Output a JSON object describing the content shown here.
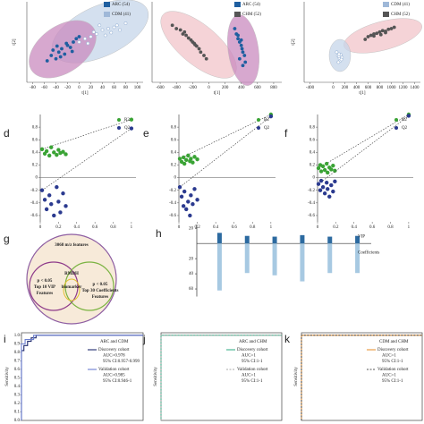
{
  "chart_data": [
    {
      "type": "scatter",
      "xlabel": "t[1]",
      "ylabel": "t[2]",
      "xlim": [
        -90,
        110
      ],
      "ylim": [
        -60,
        60
      ],
      "xticks": [
        -80,
        -60,
        -40,
        -20,
        0,
        20,
        40,
        60,
        80,
        100
      ],
      "series": [
        {
          "name": "ARC (54)",
          "color": "#1f5fa0",
          "x": [
            -55,
            -48,
            -40,
            -35,
            -30,
            -25,
            -20,
            -15,
            -10,
            -5,
            0,
            -45,
            -32,
            -22,
            -12,
            -38
          ],
          "values": [
            -28,
            -20,
            -25,
            -15,
            -10,
            -18,
            -5,
            -8,
            0,
            5,
            8,
            -12,
            -22,
            -2,
            -14,
            -6
          ]
        },
        {
          "name": "CDM (41)",
          "color": "#9fb8d8",
          "x": [
            0,
            10,
            20,
            25,
            30,
            40,
            45,
            50,
            60,
            65,
            70,
            80,
            35,
            55,
            15
          ],
          "values": [
            0,
            5,
            8,
            15,
            12,
            18,
            10,
            20,
            22,
            25,
            18,
            28,
            25,
            14,
            -2
          ]
        }
      ]
    },
    {
      "type": "scatter",
      "xlabel": "t[1]",
      "xlim": [
        -700,
        900
      ],
      "ylim": [
        -600,
        600
      ],
      "xticks": [
        -600,
        -400,
        -200,
        0,
        200,
        400,
        600,
        800
      ],
      "series": [
        {
          "name": "ARC (54)",
          "color": "#1f5fa0",
          "x": [
            320,
            340,
            360,
            380,
            400,
            410,
            420,
            440,
            450,
            380,
            360,
            420,
            400
          ],
          "values": [
            200,
            120,
            50,
            0,
            -50,
            -100,
            -150,
            -200,
            -300,
            -250,
            100,
            -350,
            30
          ]
        },
        {
          "name": "CHM (52)",
          "color": "#555555",
          "x": [
            -450,
            -400,
            -350,
            -320,
            -280,
            -250,
            -220,
            -200,
            -170,
            -150,
            -120,
            -100,
            -60,
            -30,
            -300,
            -180
          ],
          "values": [
            250,
            200,
            180,
            120,
            100,
            60,
            30,
            0,
            -40,
            -60,
            -100,
            -150,
            -200,
            -250,
            150,
            -20
          ]
        }
      ]
    },
    {
      "type": "scatter",
      "xlabel": "t[1]",
      "ylabel": "t[2]",
      "xlim": [
        -500,
        1500
      ],
      "ylim": [
        -600,
        600
      ],
      "xticks": [
        -400,
        0,
        200,
        400,
        600,
        800,
        1000,
        1200,
        1400
      ],
      "series": [
        {
          "name": "CDM (41)",
          "color": "#9fb8d8",
          "x": [
            60,
            80,
            100,
            110,
            120,
            130,
            150,
            90,
            140,
            100
          ],
          "values": [
            -150,
            -200,
            -220,
            -250,
            -280,
            -190,
            -230,
            -300,
            -260,
            -180
          ]
        },
        {
          "name": "CHM (52)",
          "color": "#555555",
          "x": [
            550,
            600,
            650,
            700,
            750,
            800,
            850,
            900,
            950,
            1000,
            1050,
            700,
            820,
            900
          ],
          "values": [
            40,
            80,
            100,
            120,
            130,
            150,
            170,
            160,
            190,
            200,
            220,
            90,
            110,
            140
          ]
        }
      ]
    },
    {
      "type": "scatter",
      "label": "d",
      "xlim": [
        0,
        1.05
      ],
      "ylim": [
        -0.7,
        1.0
      ],
      "xticks": [
        0,
        0.2,
        0.4,
        0.6,
        0.8,
        1
      ],
      "yticks": [
        0.8,
        0.6,
        0.4,
        0.2,
        0,
        -0.2,
        -0.4,
        -0.6
      ],
      "x": [
        0.02,
        0.05,
        0.07,
        0.1,
        0.12,
        0.15,
        0.18,
        0.2,
        0.22,
        0.25,
        0.28,
        1
      ],
      "series": [
        {
          "name": "R2",
          "color": "#3aa335",
          "values": [
            0.45,
            0.38,
            0.42,
            0.35,
            0.48,
            0.4,
            0.36,
            0.44,
            0.39,
            0.41,
            0.37,
            0.92
          ]
        },
        {
          "name": "Q2",
          "color": "#2b3a8f",
          "values": [
            -0.2,
            -0.35,
            -0.5,
            -0.28,
            -0.42,
            -0.6,
            -0.15,
            -0.38,
            -0.55,
            -0.25,
            -0.45,
            0.78
          ]
        }
      ]
    },
    {
      "type": "scatter",
      "label": "e",
      "xlim": [
        0,
        1.05
      ],
      "ylim": [
        -0.7,
        1.0
      ],
      "xticks": [
        0,
        0.2,
        0.4,
        0.6,
        0.8,
        1
      ],
      "yticks": [
        0.8,
        0.6,
        0.4,
        0.2,
        0,
        -0.2,
        -0.4,
        -0.6
      ],
      "x": [
        0.01,
        0.03,
        0.05,
        0.06,
        0.08,
        0.1,
        0.12,
        0.13,
        0.15,
        0.17,
        0.2,
        1
      ],
      "series": [
        {
          "name": "R2",
          "color": "#3aa335",
          "values": [
            0.3,
            0.25,
            0.32,
            0.22,
            0.28,
            0.35,
            0.26,
            0.3,
            0.24,
            0.33,
            0.29,
            1.0
          ]
        },
        {
          "name": "Q2",
          "color": "#2b3a8f",
          "values": [
            -0.15,
            -0.3,
            -0.45,
            -0.22,
            -0.5,
            -0.38,
            -0.6,
            -0.28,
            -0.42,
            -0.18,
            -0.35,
            0.97
          ]
        }
      ]
    },
    {
      "type": "scatter",
      "label": "f",
      "xlim": [
        0,
        1.05
      ],
      "ylim": [
        -0.7,
        1.0
      ],
      "xticks": [
        0,
        0.2,
        0.4,
        0.6,
        0.8,
        1
      ],
      "yticks": [
        0.8,
        0.6,
        0.4,
        0.2,
        0,
        -0.2,
        -0.4,
        -0.6
      ],
      "x": [
        0.01,
        0.03,
        0.04,
        0.06,
        0.08,
        0.1,
        0.11,
        0.13,
        0.15,
        0.17,
        0.19,
        1
      ],
      "series": [
        {
          "name": "R2",
          "color": "#3aa335",
          "values": [
            0.15,
            0.2,
            0.1,
            0.18,
            0.12,
            0.22,
            0.08,
            0.16,
            0.13,
            0.19,
            0.11,
            1.0
          ]
        },
        {
          "name": "Q2",
          "color": "#2b3a8f",
          "values": [
            -0.1,
            -0.2,
            -0.05,
            -0.15,
            -0.25,
            -0.08,
            -0.18,
            -0.3,
            -0.12,
            -0.22,
            -0.06,
            0.98
          ]
        }
      ]
    },
    {
      "type": "venn",
      "label": "g",
      "title": "3068 m/z features",
      "sets": [
        {
          "lines": [
            "p < 0.05",
            "Top 10 VIP",
            "Features"
          ]
        },
        {
          "lines": [
            "p < 0.05",
            "Top 30 Coefficients",
            "Features"
          ]
        }
      ],
      "center": [
        "RMDH",
        "biomarker"
      ]
    },
    {
      "type": "bar",
      "label": "h",
      "categories": [
        null,
        null,
        null,
        null,
        null,
        null
      ],
      "ylim": [
        -70,
        25
      ],
      "yticks": [
        20,
        {
          "value": -20,
          "label": "20"
        },
        {
          "value": -40,
          "label": "40"
        },
        {
          "value": -60,
          "label": "60"
        }
      ],
      "series": [
        {
          "name": "VIP",
          "color": "#2c6aa0",
          "values": [
            14,
            10,
            9,
            11,
            9,
            10
          ]
        },
        {
          "name": "Coefficients",
          "color": "#a7c9e2",
          "values": [
            -62,
            -39,
            -42,
            -50,
            -39,
            -39
          ]
        }
      ]
    },
    {
      "type": "line",
      "label": "i",
      "title": "ARC and CDM",
      "ylabel": "Sensitivity",
      "xlim": [
        0,
        1
      ],
      "ylim": [
        0,
        1.03
      ],
      "yticks": [
        {
          "value": 1.0,
          "label": "1.0"
        },
        0.9,
        0.8,
        0.7,
        0.6,
        0.5,
        0.4,
        0.3,
        0.2,
        0.1,
        {
          "value": 0.0,
          "label": "0.0"
        }
      ],
      "series": [
        {
          "name": "Discovery cohort",
          "auc_label": "AUC=0.978",
          "ci_label": "95% CI:0.957-0.999",
          "color": "#1f2a6e",
          "dash": false,
          "x": [
            0,
            0,
            0.02,
            0.02,
            0.05,
            0.05,
            0.08,
            0.08,
            0.12,
            0.12,
            1
          ],
          "values": [
            0,
            0.82,
            0.82,
            0.88,
            0.88,
            0.93,
            0.93,
            0.97,
            0.97,
            1,
            1
          ]
        },
        {
          "name": "Validation cohort",
          "auc_label": "AUC=0.985",
          "ci_label": "95% CI:0.946-1",
          "color": "#6b7fd0",
          "dash": false,
          "x": [
            0,
            0,
            0.03,
            0.03,
            0.1,
            0.1,
            1
          ],
          "values": [
            0,
            0.9,
            0.9,
            0.95,
            0.95,
            1,
            1
          ]
        }
      ]
    },
    {
      "type": "line",
      "label": "j",
      "title": "ARC and CHM",
      "ylabel": "Sensitivity",
      "xlim": [
        0,
        1
      ],
      "ylim": [
        0,
        1.03
      ],
      "series": [
        {
          "name": "Discovery cohort",
          "auc_label": "AUC=1",
          "ci_label": "95% CI:1-1",
          "color": "#3db08a",
          "dash": false,
          "x": [
            0,
            0,
            1
          ],
          "values": [
            0,
            1,
            1
          ]
        },
        {
          "name": "Validation cohort",
          "auc_label": "AUC=1",
          "ci_label": "95% CI:1-1",
          "color": "#aaaaaa",
          "dash": true,
          "x": [
            0,
            0,
            1
          ],
          "values": [
            0,
            1,
            1
          ]
        }
      ]
    },
    {
      "type": "line",
      "label": "k",
      "title": "CDM and CHM",
      "ylabel": "Sensitivity",
      "xlim": [
        0,
        1
      ],
      "ylim": [
        0,
        1.03
      ],
      "series": [
        {
          "name": "Discovery cohort",
          "auc_label": "AUC=1",
          "ci_label": "95% CI:1-1",
          "color": "#e8953a",
          "dash": false,
          "x": [
            0,
            0,
            1
          ],
          "values": [
            0,
            1,
            1
          ]
        },
        {
          "name": "Validation cohort",
          "auc_label": "AUC=1",
          "ci_label": "95% CI:1-1",
          "color": "#555555",
          "dash": true,
          "x": [
            0,
            0,
            1
          ],
          "values": [
            0,
            1,
            1
          ]
        }
      ]
    }
  ]
}
